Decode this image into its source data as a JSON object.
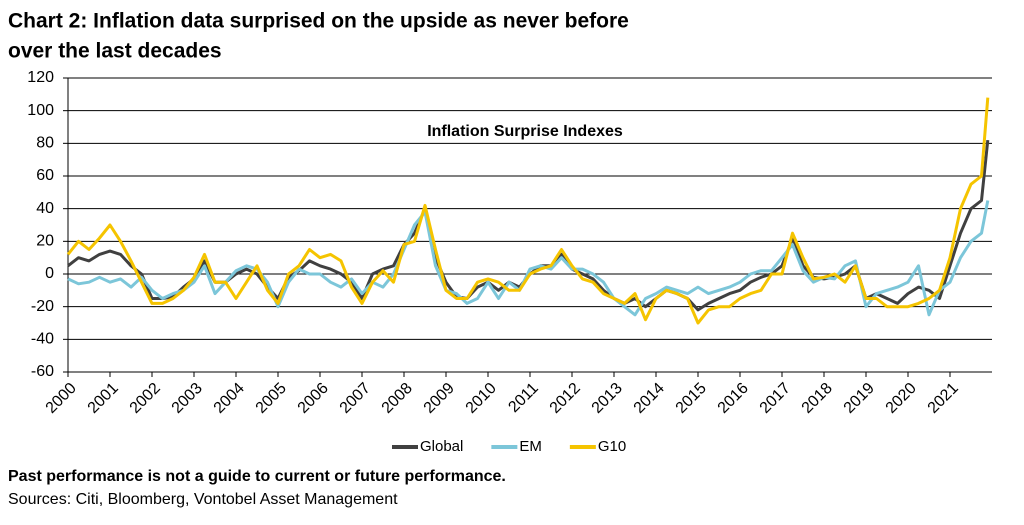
{
  "chart_data": {
    "type": "line",
    "title": [
      "Chart 2: Inflation data surprised on the upside as never before",
      "over the last decades"
    ],
    "annotation": "Inflation Surprise Indexes",
    "notes": [
      "Past performance is not a guide to current or future performance.",
      "Sources: Citi, Bloomberg, Vontobel Asset Management"
    ],
    "x": [
      2000,
      2000.25,
      2000.5,
      2000.75,
      2001,
      2001.25,
      2001.5,
      2001.75,
      2002,
      2002.25,
      2002.5,
      2002.75,
      2003,
      2003.25,
      2003.5,
      2003.75,
      2004,
      2004.25,
      2004.5,
      2004.75,
      2005,
      2005.25,
      2005.5,
      2005.75,
      2006,
      2006.25,
      2006.5,
      2006.75,
      2007,
      2007.25,
      2007.5,
      2007.75,
      2008,
      2008.25,
      2008.5,
      2008.75,
      2009,
      2009.25,
      2009.5,
      2009.75,
      2010,
      2010.25,
      2010.5,
      2010.75,
      2011,
      2011.25,
      2011.5,
      2011.75,
      2012,
      2012.25,
      2012.5,
      2012.75,
      2013,
      2013.25,
      2013.5,
      2013.75,
      2014,
      2014.25,
      2014.5,
      2014.75,
      2015,
      2015.25,
      2015.5,
      2015.75,
      2016,
      2016.25,
      2016.5,
      2016.75,
      2017,
      2017.25,
      2017.5,
      2017.75,
      2018,
      2018.25,
      2018.5,
      2018.75,
      2019,
      2019.25,
      2019.5,
      2019.75,
      2020,
      2020.25,
      2020.5,
      2020.75,
      2021,
      2021.25,
      2021.5,
      2021.75,
      2021.9
    ],
    "series": [
      {
        "name": "Global",
        "color": "#404040",
        "values": [
          5,
          10,
          8,
          12,
          14,
          12,
          5,
          0,
          -15,
          -15,
          -14,
          -8,
          -3,
          8,
          -5,
          -5,
          0,
          3,
          0,
          -8,
          -15,
          -2,
          2,
          8,
          5,
          3,
          0,
          -5,
          -15,
          0,
          3,
          5,
          18,
          25,
          40,
          10,
          -5,
          -14,
          -15,
          -8,
          -5,
          -10,
          -5,
          -8,
          0,
          5,
          5,
          12,
          3,
          0,
          -3,
          -10,
          -15,
          -18,
          -15,
          -20,
          -15,
          -10,
          -12,
          -15,
          -22,
          -18,
          -15,
          -12,
          -10,
          -5,
          -2,
          0,
          5,
          22,
          5,
          -2,
          -3,
          -2,
          0,
          5,
          -15,
          -12,
          -15,
          -18,
          -12,
          -8,
          -10,
          -15,
          5,
          25,
          40,
          45,
          82
        ]
      },
      {
        "name": "EM",
        "color": "#7cc6d9",
        "values": [
          -3,
          -6,
          -5,
          -2,
          -5,
          -3,
          -8,
          -2,
          -10,
          -15,
          -12,
          -10,
          -5,
          5,
          -12,
          -5,
          2,
          5,
          3,
          -5,
          -20,
          -5,
          3,
          0,
          0,
          -5,
          -8,
          -3,
          -12,
          -5,
          -8,
          0,
          15,
          30,
          38,
          5,
          -10,
          -12,
          -18,
          -15,
          -5,
          -15,
          -5,
          -10,
          3,
          5,
          3,
          10,
          3,
          3,
          0,
          -5,
          -15,
          -20,
          -25,
          -15,
          -12,
          -8,
          -10,
          -12,
          -8,
          -12,
          -10,
          -8,
          -5,
          0,
          2,
          2,
          10,
          18,
          2,
          -5,
          -2,
          -3,
          5,
          8,
          -20,
          -12,
          -10,
          -8,
          -5,
          5,
          -25,
          -10,
          -5,
          10,
          20,
          25,
          45
        ]
      },
      {
        "name": "G10",
        "color": "#f5c400",
        "values": [
          12,
          20,
          15,
          22,
          30,
          20,
          8,
          -5,
          -18,
          -18,
          -15,
          -10,
          -2,
          12,
          -5,
          -5,
          -15,
          -5,
          5,
          -10,
          -18,
          0,
          5,
          15,
          10,
          12,
          8,
          -8,
          -18,
          -5,
          2,
          -5,
          18,
          20,
          42,
          15,
          -10,
          -15,
          -15,
          -5,
          -3,
          -5,
          -10,
          -10,
          0,
          3,
          5,
          15,
          5,
          -3,
          -5,
          -12,
          -15,
          -18,
          -12,
          -28,
          -15,
          -10,
          -12,
          -15,
          -30,
          -22,
          -20,
          -20,
          -15,
          -12,
          -10,
          0,
          0,
          25,
          10,
          -3,
          -2,
          0,
          -5,
          5,
          -15,
          -15,
          -20,
          -20,
          -20,
          -18,
          -15,
          -10,
          10,
          40,
          55,
          60,
          108
        ]
      }
    ],
    "xlim": [
      2000,
      2022
    ],
    "xticks": [
      2000,
      2001,
      2002,
      2003,
      2004,
      2005,
      2006,
      2007,
      2008,
      2009,
      2010,
      2011,
      2012,
      2013,
      2014,
      2015,
      2016,
      2017,
      2018,
      2019,
      2020,
      2021
    ],
    "ylim": [
      -60,
      120
    ],
    "yticks": [
      -60,
      -40,
      -20,
      0,
      20,
      40,
      60,
      80,
      100,
      120
    ],
    "grid": true
  }
}
